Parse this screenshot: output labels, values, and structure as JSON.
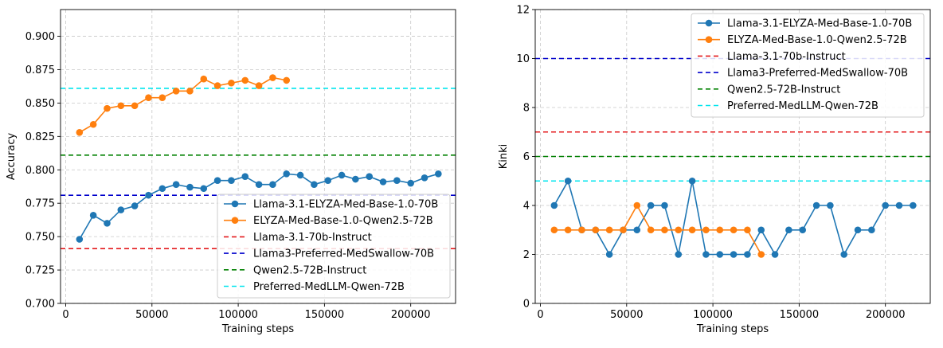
{
  "chart_data": [
    {
      "type": "line",
      "xlabel": "Training steps",
      "ylabel": "Accuracy",
      "xlim": [
        -3000,
        226000
      ],
      "ylim": [
        0.7,
        0.92
      ],
      "xticks": [
        0,
        50000,
        100000,
        150000,
        200000
      ],
      "xtick_labels": [
        "0",
        "50000",
        "100000",
        "150000",
        "200000"
      ],
      "yticks": [
        0.7,
        0.725,
        0.75,
        0.775,
        0.8,
        0.825,
        0.85,
        0.875,
        0.9
      ],
      "ytick_labels": [
        "0.700",
        "0.725",
        "0.750",
        "0.775",
        "0.800",
        "0.825",
        "0.850",
        "0.875",
        "0.900"
      ],
      "grid": true,
      "legend_position": "lower-right",
      "series": [
        {
          "name": "Llama-3.1-ELYZA-Med-Base-1.0-70B",
          "color": "#1f77b4",
          "style": "line-marker",
          "x": [
            8000,
            16000,
            24000,
            32000,
            40000,
            48000,
            56000,
            64000,
            72000,
            80000,
            88000,
            96000,
            104000,
            112000,
            120000,
            128000,
            136000,
            144000,
            152000,
            160000,
            168000,
            176000,
            184000,
            192000,
            200000,
            208000,
            216000
          ],
          "y": [
            0.748,
            0.766,
            0.76,
            0.77,
            0.773,
            0.781,
            0.786,
            0.789,
            0.787,
            0.786,
            0.792,
            0.792,
            0.795,
            0.789,
            0.789,
            0.797,
            0.796,
            0.789,
            0.792,
            0.796,
            0.793,
            0.795,
            0.791,
            0.792,
            0.79,
            0.794,
            0.797
          ]
        },
        {
          "name": "ELYZA-Med-Base-1.0-Qwen2.5-72B",
          "color": "#ff7f0e",
          "style": "line-marker",
          "x": [
            8000,
            16000,
            24000,
            32000,
            40000,
            48000,
            56000,
            64000,
            72000,
            80000,
            88000,
            96000,
            104000,
            112000,
            120000,
            128000
          ],
          "y": [
            0.828,
            0.834,
            0.846,
            0.848,
            0.848,
            0.854,
            0.854,
            0.859,
            0.859,
            0.868,
            0.863,
            0.865,
            0.867,
            0.863,
            0.869,
            0.867
          ]
        },
        {
          "name": "Llama-3.1-70b-Instruct",
          "color": "#e41a1c",
          "style": "dashed",
          "y": 0.741
        },
        {
          "name": "Llama3-Preferred-MedSwallow-70B",
          "color": "#0000cc",
          "style": "dashed",
          "y": 0.781
        },
        {
          "name": "Qwen2.5-72B-Instruct",
          "color": "#008000",
          "style": "dashed",
          "y": 0.811
        },
        {
          "name": "Preferred-MedLLM-Qwen-72B",
          "color": "#00e5ee",
          "style": "dashed",
          "y": 0.861
        }
      ]
    },
    {
      "type": "line",
      "xlabel": "Training steps",
      "ylabel": "Kinki",
      "xlim": [
        -3000,
        226000
      ],
      "ylim": [
        0,
        12
      ],
      "xticks": [
        0,
        50000,
        100000,
        150000,
        200000
      ],
      "xtick_labels": [
        "0",
        "50000",
        "100000",
        "150000",
        "200000"
      ],
      "yticks": [
        0,
        2,
        4,
        6,
        8,
        10,
        12
      ],
      "ytick_labels": [
        "0",
        "2",
        "4",
        "6",
        "8",
        "10",
        "12"
      ],
      "grid": true,
      "legend_position": "upper-right",
      "series": [
        {
          "name": "Llama-3.1-ELYZA-Med-Base-1.0-70B",
          "color": "#1f77b4",
          "style": "line-marker",
          "x": [
            8000,
            16000,
            24000,
            32000,
            40000,
            48000,
            56000,
            64000,
            72000,
            80000,
            88000,
            96000,
            104000,
            112000,
            120000,
            128000,
            136000,
            144000,
            152000,
            160000,
            168000,
            176000,
            184000,
            192000,
            200000,
            208000,
            216000
          ],
          "y": [
            4,
            5,
            3,
            3,
            2,
            3,
            3,
            4,
            4,
            2,
            5,
            2,
            2,
            2,
            2,
            3,
            2,
            3,
            3,
            4,
            4,
            2,
            3,
            3,
            4,
            4,
            4
          ]
        },
        {
          "name": "ELYZA-Med-Base-1.0-Qwen2.5-72B",
          "color": "#ff7f0e",
          "style": "line-marker",
          "x": [
            8000,
            16000,
            24000,
            32000,
            40000,
            48000,
            56000,
            64000,
            72000,
            80000,
            88000,
            96000,
            104000,
            112000,
            120000,
            128000
          ],
          "y": [
            3,
            3,
            3,
            3,
            3,
            3,
            4,
            3,
            3,
            3,
            3,
            3,
            3,
            3,
            3,
            2
          ]
        },
        {
          "name": "Llama-3.1-70b-Instruct",
          "color": "#e41a1c",
          "style": "dashed",
          "y": 7
        },
        {
          "name": "Llama3-Preferred-MedSwallow-70B",
          "color": "#0000cc",
          "style": "dashed",
          "y": 10
        },
        {
          "name": "Qwen2.5-72B-Instruct",
          "color": "#008000",
          "style": "dashed",
          "y": 6
        },
        {
          "name": "Preferred-MedLLM-Qwen-72B",
          "color": "#00e5ee",
          "style": "dashed",
          "y": 5
        }
      ]
    }
  ]
}
